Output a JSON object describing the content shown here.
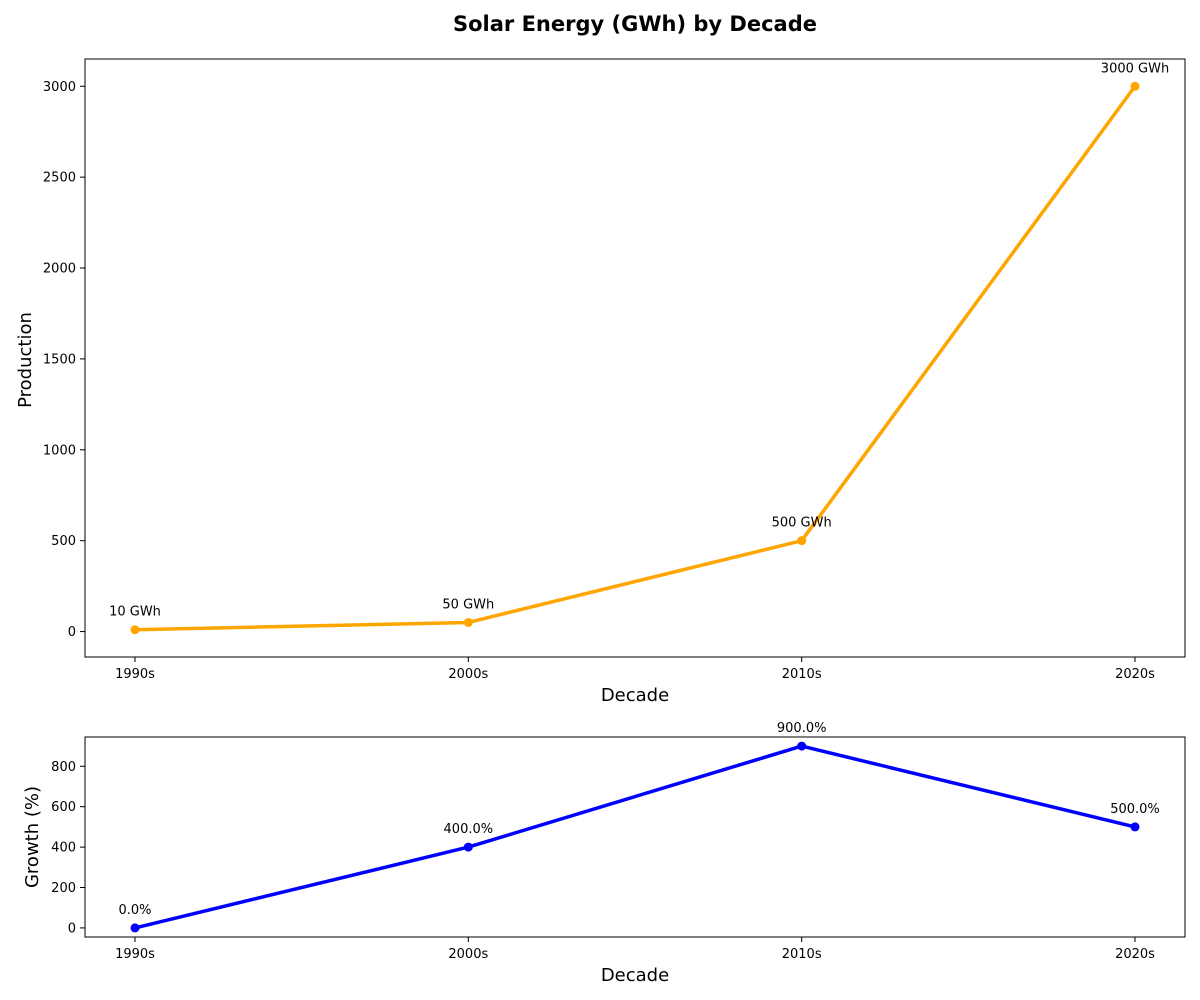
{
  "chart_data": [
    {
      "type": "line",
      "title": "Solar Energy (GWh) by Decade",
      "xlabel": "Decade",
      "ylabel": "Production",
      "categories": [
        "1990s",
        "2000s",
        "2010s",
        "2020s"
      ],
      "values": [
        10,
        50,
        500,
        3000
      ],
      "data_labels": [
        "10 GWh",
        "50 GWh",
        "500 GWh",
        "3000 GWh"
      ],
      "ylim": [
        -140,
        3150
      ],
      "yticks": [
        0,
        500,
        1000,
        1500,
        2000,
        2500,
        3000
      ],
      "color": "#FFA500",
      "grid": false
    },
    {
      "type": "line",
      "title": "",
      "xlabel": "Decade",
      "ylabel": "Growth (%)",
      "categories": [
        "1990s",
        "2000s",
        "2010s",
        "2020s"
      ],
      "values": [
        0,
        400,
        900,
        500
      ],
      "data_labels": [
        "0.0%",
        "400.0%",
        "900.0%",
        "500.0%"
      ],
      "ylim": [
        -45,
        945
      ],
      "yticks": [
        0,
        200,
        400,
        600,
        800
      ],
      "color": "#0000FF",
      "grid": false
    }
  ]
}
